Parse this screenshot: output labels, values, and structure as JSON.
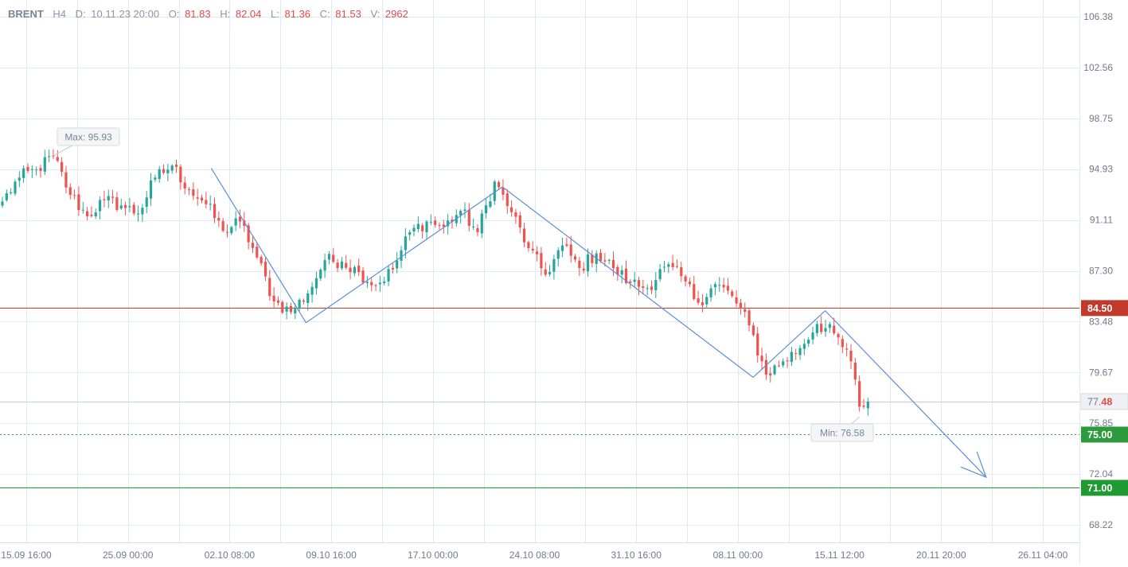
{
  "header": {
    "symbol": "BRENT",
    "timeframe": "H4",
    "date_label": "D:",
    "date_value": "10.11.23 20:00",
    "open_label": "O:",
    "open_value": "81.83",
    "high_label": "H:",
    "high_value": "82.04",
    "low_label": "L:",
    "low_value": "81.36",
    "close_label": "C:",
    "close_value": "81.53",
    "volume_label": "V:",
    "volume_value": "2962"
  },
  "colors": {
    "up": "#26a69a",
    "down": "#ef5350",
    "grid": "#e3e8f2",
    "trend": "#5b8fd6",
    "resistance": "#c0392b",
    "support_dotted": "#2e9a3e",
    "support_solid": "#2e9a3e"
  },
  "chart_data": {
    "type": "candlestick",
    "y_axis": {
      "ticks": [
        "106.38",
        "102.56",
        "98.75",
        "94.93",
        "91.11",
        "87.30",
        "83.48",
        "79.67",
        "75.85",
        "72.04",
        "68.22"
      ],
      "range": [
        66.5,
        108.0
      ]
    },
    "x_axis": {
      "ticks": [
        "15.09 16:00",
        "25.09 00:00",
        "02.10 08:00",
        "09.10 16:00",
        "17.10 00:00",
        "24.10 08:00",
        "31.10 16:00",
        "08.11 00:00",
        "15.11 12:00",
        "20.11 20:00",
        "26.11 04:00"
      ]
    },
    "annotations": {
      "max_label": "Max: 95.93",
      "max_value": 95.93,
      "min_label": "Min: 76.58",
      "min_value": 76.58
    },
    "levels": [
      {
        "label": "84.50",
        "value": 84.5,
        "style": "solid",
        "color": "#c0392b"
      },
      {
        "label": "77.48",
        "value": 77.48,
        "style": "current",
        "color": "#9aa3b2"
      },
      {
        "label": "75.00",
        "value": 75.0,
        "style": "dotted",
        "color": "#2e9a3e"
      },
      {
        "label": "71.00",
        "value": 71.0,
        "style": "solid",
        "color": "#1e9a30"
      }
    ],
    "current_price": {
      "prefix": "77.",
      "suffix": "48"
    },
    "trend_path": [
      {
        "t": 0.214,
        "p": 95.0
      },
      {
        "t": 0.31,
        "p": 83.4
      },
      {
        "t": 0.509,
        "p": 93.6
      },
      {
        "t": 0.763,
        "p": 79.3
      },
      {
        "t": 0.836,
        "p": 84.3
      },
      {
        "t": 0.999,
        "p": 71.8
      }
    ],
    "anchors": [
      [
        0,
        92.5
      ],
      [
        4,
        94.3
      ],
      [
        8,
        94.9
      ],
      [
        12,
        95.93
      ],
      [
        16,
        93.0
      ],
      [
        20,
        91.4
      ],
      [
        24,
        92.6
      ],
      [
        28,
        92.2
      ],
      [
        32,
        91.6
      ],
      [
        36,
        94.3
      ],
      [
        40,
        95.2
      ],
      [
        44,
        93.4
      ],
      [
        48,
        92.3
      ],
      [
        52,
        90.3
      ],
      [
        56,
        91.0
      ],
      [
        60,
        88.3
      ],
      [
        64,
        85.0
      ],
      [
        68,
        84.2
      ],
      [
        72,
        85.6
      ],
      [
        76,
        88.1
      ],
      [
        80,
        88.0
      ],
      [
        84,
        87.2
      ],
      [
        88,
        86.2
      ],
      [
        92,
        87.4
      ],
      [
        96,
        90.2
      ],
      [
        100,
        91.0
      ],
      [
        104,
        90.6
      ],
      [
        108,
        91.8
      ],
      [
        112,
        90.2
      ],
      [
        116,
        94.0
      ],
      [
        120,
        91.7
      ],
      [
        124,
        89.0
      ],
      [
        128,
        87.0
      ],
      [
        132,
        89.2
      ],
      [
        136,
        87.5
      ],
      [
        140,
        88.6
      ],
      [
        144,
        87.5
      ],
      [
        148,
        86.4
      ],
      [
        152,
        86.0
      ],
      [
        156,
        87.6
      ],
      [
        160,
        86.9
      ],
      [
        164,
        84.9
      ],
      [
        168,
        86.3
      ],
      [
        172,
        85.4
      ],
      [
        176,
        83.2
      ],
      [
        180,
        79.5
      ],
      [
        184,
        80.5
      ],
      [
        188,
        81.5
      ],
      [
        192,
        83.3
      ],
      [
        196,
        82.6
      ],
      [
        200,
        80.5
      ],
      [
        202,
        77.1
      ],
      [
        204,
        77.48
      ]
    ]
  }
}
